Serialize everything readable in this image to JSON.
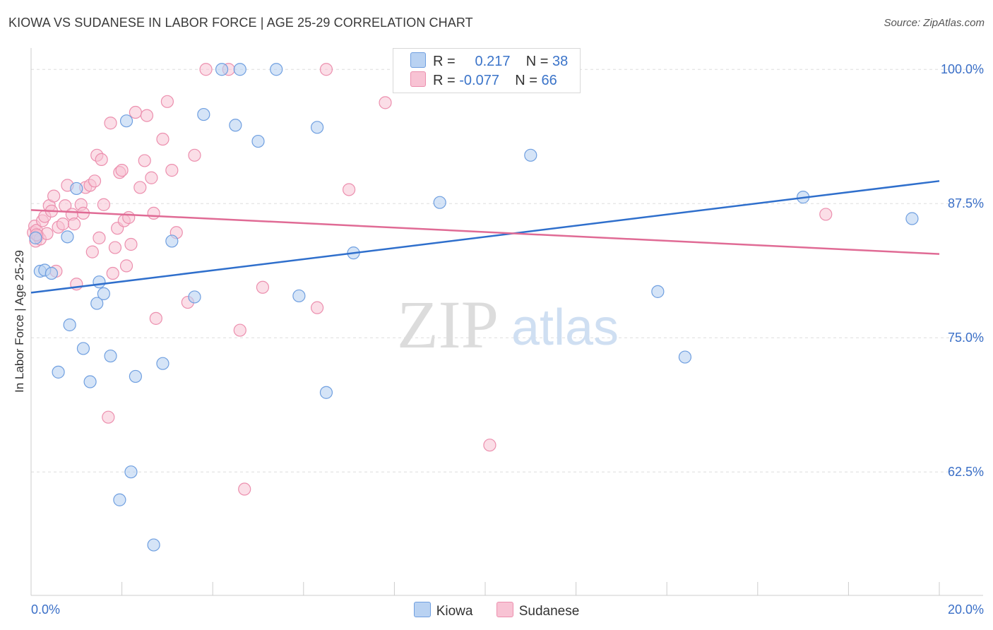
{
  "header": {
    "title": "KIOWA VS SUDANESE IN LABOR FORCE | AGE 25-29 CORRELATION CHART",
    "source": "Source: ZipAtlas.com"
  },
  "watermark": {
    "zip": "ZIP",
    "atlas": "atlas"
  },
  "stats": {
    "rows": [
      {
        "r_label": "R =",
        "r_value": "0.217",
        "n_label": "N =",
        "n_value": "38"
      },
      {
        "r_label": "R =",
        "r_value": "-0.077",
        "n_label": "N =",
        "n_value": "66"
      }
    ]
  },
  "legend": {
    "items": [
      {
        "label": "Kiowa"
      },
      {
        "label": "Sudanese"
      }
    ]
  },
  "colors": {
    "kiowa_fill": "#b9d2f2",
    "kiowa_stroke": "#6f9fe0",
    "kiowa_line": "#2f6fcc",
    "sudanese_fill": "#f8c3d4",
    "sudanese_stroke": "#ec8fae",
    "sudanese_line": "#e06b95",
    "tick_label": "#3a6fc7",
    "grid": "#dddddd"
  },
  "chart_data": {
    "type": "scatter",
    "title": "KIOWA VS SUDANESE IN LABOR FORCE | AGE 25-29 CORRELATION CHART",
    "xlabel": "",
    "ylabel": "In Labor Force | Age 25-29",
    "xlim": [
      0,
      20
    ],
    "ylim": [
      51,
      101.2
    ],
    "x_tick_labels": [
      {
        "value": 0,
        "label": "0.0%"
      },
      {
        "value": 20,
        "label": "20.0%"
      }
    ],
    "y_tick_labels": [
      {
        "value": 100,
        "label": "100.0%"
      },
      {
        "value": 87.5,
        "label": "87.5%"
      },
      {
        "value": 75,
        "label": "75.0%"
      },
      {
        "value": 62.5,
        "label": "62.5%"
      }
    ],
    "series": [
      {
        "name": "Kiowa",
        "trend": {
          "x": [
            0,
            20
          ],
          "y": [
            79.2,
            89.6
          ]
        },
        "points": [
          {
            "x": 0.1,
            "y": 84.3
          },
          {
            "x": 0.2,
            "y": 81.2
          },
          {
            "x": 0.3,
            "y": 81.3
          },
          {
            "x": 0.45,
            "y": 81.0
          },
          {
            "x": 0.6,
            "y": 71.8
          },
          {
            "x": 0.8,
            "y": 84.4
          },
          {
            "x": 0.85,
            "y": 76.2
          },
          {
            "x": 1.0,
            "y": 88.9
          },
          {
            "x": 1.15,
            "y": 74.0
          },
          {
            "x": 1.3,
            "y": 70.9
          },
          {
            "x": 1.45,
            "y": 78.2
          },
          {
            "x": 1.5,
            "y": 80.2
          },
          {
            "x": 1.6,
            "y": 79.1
          },
          {
            "x": 1.75,
            "y": 73.3
          },
          {
            "x": 1.95,
            "y": 59.9
          },
          {
            "x": 2.1,
            "y": 95.2
          },
          {
            "x": 2.2,
            "y": 62.5
          },
          {
            "x": 2.3,
            "y": 71.4
          },
          {
            "x": 2.7,
            "y": 55.7
          },
          {
            "x": 2.9,
            "y": 72.6
          },
          {
            "x": 3.1,
            "y": 84.0
          },
          {
            "x": 3.6,
            "y": 78.8
          },
          {
            "x": 3.8,
            "y": 95.8
          },
          {
            "x": 4.2,
            "y": 100.0
          },
          {
            "x": 4.6,
            "y": 100.0
          },
          {
            "x": 4.5,
            "y": 94.8
          },
          {
            "x": 5.0,
            "y": 93.3
          },
          {
            "x": 5.4,
            "y": 100.0
          },
          {
            "x": 5.9,
            "y": 78.9
          },
          {
            "x": 6.3,
            "y": 94.6
          },
          {
            "x": 6.5,
            "y": 69.9
          },
          {
            "x": 7.1,
            "y": 82.9
          },
          {
            "x": 9.0,
            "y": 87.6
          },
          {
            "x": 11.0,
            "y": 92.0
          },
          {
            "x": 13.8,
            "y": 79.3
          },
          {
            "x": 14.4,
            "y": 73.2
          },
          {
            "x": 17.0,
            "y": 88.1
          },
          {
            "x": 19.4,
            "y": 86.1
          }
        ]
      },
      {
        "name": "Sudanese",
        "trend": {
          "x": [
            0,
            20
          ],
          "y": [
            86.9,
            82.8
          ]
        },
        "points": [
          {
            "x": 0.05,
            "y": 84.8
          },
          {
            "x": 0.08,
            "y": 85.4
          },
          {
            "x": 0.1,
            "y": 84.0
          },
          {
            "x": 0.12,
            "y": 85.0
          },
          {
            "x": 0.15,
            "y": 84.5
          },
          {
            "x": 0.2,
            "y": 84.2
          },
          {
            "x": 0.25,
            "y": 85.9
          },
          {
            "x": 0.3,
            "y": 86.3
          },
          {
            "x": 0.35,
            "y": 84.7
          },
          {
            "x": 0.4,
            "y": 87.3
          },
          {
            "x": 0.45,
            "y": 86.8
          },
          {
            "x": 0.5,
            "y": 88.2
          },
          {
            "x": 0.55,
            "y": 81.2
          },
          {
            "x": 0.6,
            "y": 85.3
          },
          {
            "x": 0.7,
            "y": 85.6
          },
          {
            "x": 0.75,
            "y": 87.3
          },
          {
            "x": 0.8,
            "y": 89.2
          },
          {
            "x": 0.9,
            "y": 86.5
          },
          {
            "x": 0.95,
            "y": 85.6
          },
          {
            "x": 1.0,
            "y": 80.0
          },
          {
            "x": 1.1,
            "y": 87.4
          },
          {
            "x": 1.15,
            "y": 86.6
          },
          {
            "x": 1.2,
            "y": 89.0
          },
          {
            "x": 1.3,
            "y": 89.2
          },
          {
            "x": 1.35,
            "y": 83.0
          },
          {
            "x": 1.4,
            "y": 89.6
          },
          {
            "x": 1.45,
            "y": 92.0
          },
          {
            "x": 1.5,
            "y": 84.3
          },
          {
            "x": 1.55,
            "y": 91.6
          },
          {
            "x": 1.6,
            "y": 87.4
          },
          {
            "x": 1.7,
            "y": 67.6
          },
          {
            "x": 1.75,
            "y": 95.0
          },
          {
            "x": 1.8,
            "y": 81.0
          },
          {
            "x": 1.85,
            "y": 83.4
          },
          {
            "x": 1.9,
            "y": 85.2
          },
          {
            "x": 1.95,
            "y": 90.4
          },
          {
            "x": 2.0,
            "y": 90.6
          },
          {
            "x": 2.05,
            "y": 85.9
          },
          {
            "x": 2.1,
            "y": 81.7
          },
          {
            "x": 2.15,
            "y": 86.2
          },
          {
            "x": 2.2,
            "y": 83.7
          },
          {
            "x": 2.3,
            "y": 96.0
          },
          {
            "x": 2.4,
            "y": 89.0
          },
          {
            "x": 2.5,
            "y": 91.5
          },
          {
            "x": 2.55,
            "y": 95.7
          },
          {
            "x": 2.65,
            "y": 89.9
          },
          {
            "x": 2.7,
            "y": 86.6
          },
          {
            "x": 2.75,
            "y": 76.8
          },
          {
            "x": 2.9,
            "y": 93.5
          },
          {
            "x": 3.0,
            "y": 97.0
          },
          {
            "x": 3.1,
            "y": 90.6
          },
          {
            "x": 3.2,
            "y": 84.8
          },
          {
            "x": 3.45,
            "y": 78.3
          },
          {
            "x": 3.6,
            "y": 92.0
          },
          {
            "x": 3.85,
            "y": 100.0
          },
          {
            "x": 4.35,
            "y": 100.0
          },
          {
            "x": 4.6,
            "y": 75.7
          },
          {
            "x": 4.7,
            "y": 60.9
          },
          {
            "x": 5.1,
            "y": 79.7
          },
          {
            "x": 6.3,
            "y": 77.8
          },
          {
            "x": 6.5,
            "y": 100.0
          },
          {
            "x": 7.0,
            "y": 88.8
          },
          {
            "x": 7.8,
            "y": 96.9
          },
          {
            "x": 10.1,
            "y": 65.0
          },
          {
            "x": 17.5,
            "y": 86.5
          },
          {
            "x": 0.12,
            "y": 84.6
          }
        ]
      }
    ]
  }
}
